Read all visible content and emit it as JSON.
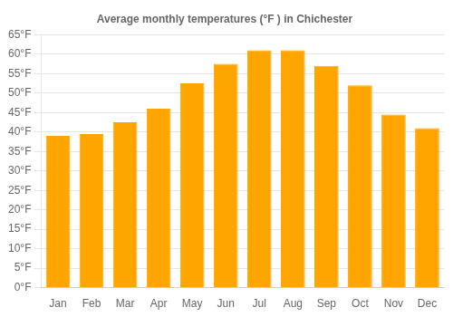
{
  "chart_data": {
    "type": "bar",
    "title": "Average monthly temperatures (°F ) in Chichester",
    "categories": [
      "Jan",
      "Feb",
      "Mar",
      "Apr",
      "May",
      "Jun",
      "Jul",
      "Aug",
      "Sep",
      "Oct",
      "Nov",
      "Dec"
    ],
    "values": [
      39,
      39.5,
      42.5,
      46,
      52.5,
      57.5,
      61,
      61,
      57,
      52,
      44.5,
      41
    ],
    "color": "#FFA500",
    "ylim": [
      0,
      65
    ],
    "yticks": [
      {
        "value": 0,
        "label": "0°F"
      },
      {
        "value": 5,
        "label": "5°F"
      },
      {
        "value": 10,
        "label": "10°F"
      },
      {
        "value": 15,
        "label": "15°F"
      },
      {
        "value": 20,
        "label": "20°F"
      },
      {
        "value": 25,
        "label": "25°F"
      },
      {
        "value": 30,
        "label": "30°F"
      },
      {
        "value": 35,
        "label": "35°F"
      },
      {
        "value": 40,
        "label": "40°F"
      },
      {
        "value": 45,
        "label": "45°F"
      },
      {
        "value": 50,
        "label": "50°F"
      },
      {
        "value": 55,
        "label": "55°F"
      },
      {
        "value": 60,
        "label": "60°F"
      },
      {
        "value": 65,
        "label": "65°F"
      }
    ],
    "grid": true
  }
}
